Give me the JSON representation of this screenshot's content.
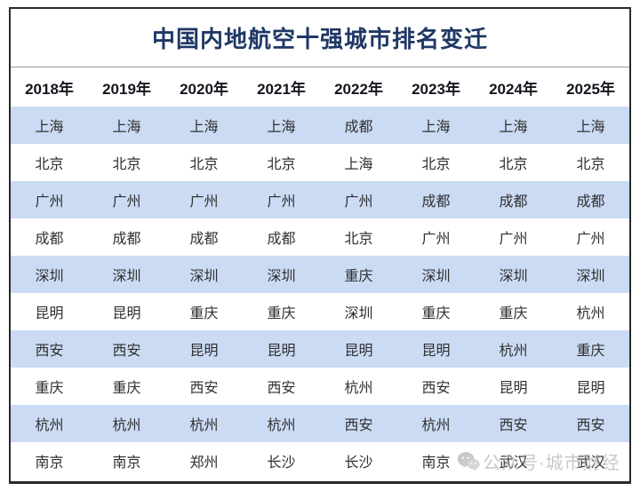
{
  "title": "中国内地航空十强城市排名变迁",
  "table": {
    "year_headers": [
      "2018年",
      "2019年",
      "2020年",
      "2021年",
      "2022年",
      "2023年",
      "2024年",
      "2025年"
    ],
    "rows": [
      [
        "上海",
        "上海",
        "上海",
        "上海",
        "成都",
        "上海",
        "上海",
        "上海"
      ],
      [
        "北京",
        "北京",
        "北京",
        "北京",
        "上海",
        "北京",
        "北京",
        "北京"
      ],
      [
        "广州",
        "广州",
        "广州",
        "广州",
        "广州",
        "成都",
        "成都",
        "成都"
      ],
      [
        "成都",
        "成都",
        "成都",
        "成都",
        "北京",
        "广州",
        "广州",
        "广州"
      ],
      [
        "深圳",
        "深圳",
        "深圳",
        "深圳",
        "重庆",
        "深圳",
        "深圳",
        "深圳"
      ],
      [
        "昆明",
        "昆明",
        "重庆",
        "重庆",
        "深圳",
        "重庆",
        "重庆",
        "杭州"
      ],
      [
        "西安",
        "西安",
        "昆明",
        "昆明",
        "昆明",
        "昆明",
        "杭州",
        "重庆"
      ],
      [
        "重庆",
        "重庆",
        "西安",
        "西安",
        "杭州",
        "西安",
        "昆明",
        "昆明"
      ],
      [
        "杭州",
        "杭州",
        "杭州",
        "杭州",
        "西安",
        "杭州",
        "西安",
        "西安"
      ],
      [
        "南京",
        "南京",
        "郑州",
        "长沙",
        "长沙",
        "南京",
        "武汉",
        "武汉"
      ]
    ]
  },
  "watermark": {
    "icon": "wechat-icon",
    "text": "公众号·城市财经"
  },
  "colors": {
    "title_text": "#1f3864",
    "header_text": "#15151f",
    "cell_text": "#2f2f2f",
    "row_alternate": "#cbdbf4",
    "frame_border": "#2b2b2b",
    "watermark_gray": "#aaaaaa"
  }
}
